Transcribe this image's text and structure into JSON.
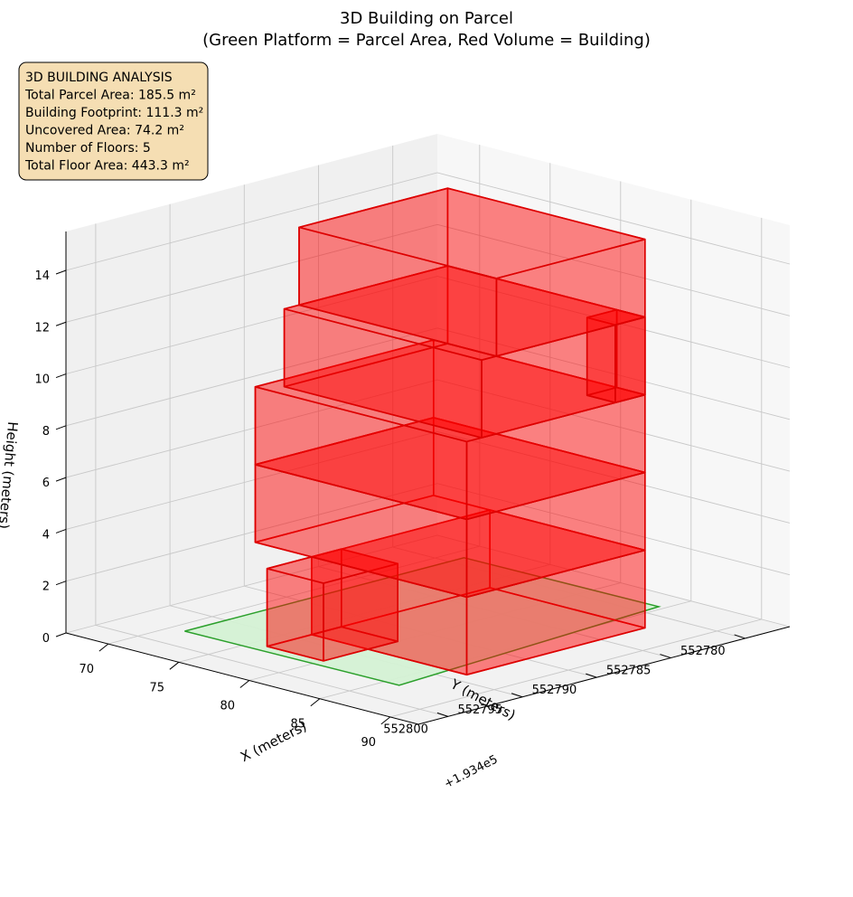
{
  "chart_data": {
    "type": "3d-volume",
    "title": "3D Building on Parcel",
    "subtitle": "(Green Platform = Parcel Area, Red Volume = Building)",
    "xlabel": "X (meters)",
    "ylabel": "Y (meters)",
    "zlabel": "Height (meters)",
    "x_offset_label": "+1.934e5",
    "x_ticks": [
      "70",
      "75",
      "80",
      "85",
      "90"
    ],
    "y_ticks": [
      "552780",
      "552785",
      "552790",
      "552795",
      "552800"
    ],
    "z_ticks": [
      "0",
      "2",
      "4",
      "6",
      "8",
      "10",
      "12",
      "14"
    ],
    "xlim": [
      193467,
      193492
    ],
    "ylim": [
      552777,
      552802
    ],
    "zlim": [
      0,
      15.5
    ],
    "grid": true,
    "info_box": {
      "lines": [
        "3D BUILDING ANALYSIS",
        "Total Parcel Area: 185.5 m²",
        "Building Footprint: 111.3 m²",
        "Uncovered Area: 74.2 m²",
        "Number of Floors: 5",
        "Total Floor Area: 443.3 m²"
      ],
      "background": "#f5deb3"
    },
    "parcel": {
      "color": "#2ca02c",
      "fill": "#d4f1d4",
      "z": 0,
      "corners": [
        [
          193471,
          552779
        ],
        [
          193484.6,
          552778.8
        ],
        [
          193486,
          552797.6
        ],
        [
          193471,
          552797.8
        ]
      ]
    },
    "building": {
      "color": "#ff0000",
      "edge": "#dd0000",
      "volumes": [
        {
          "x": [
            193476,
            193487
          ],
          "y": [
            552782,
            552794
          ],
          "z": [
            0,
            3
          ]
        },
        {
          "x": [
            193476,
            193480
          ],
          "y": [
            552792,
            552797
          ],
          "z": [
            0,
            3
          ]
        },
        {
          "x": [
            193472,
            193487
          ],
          "y": [
            552782,
            552794
          ],
          "z": [
            3,
            6
          ]
        },
        {
          "x": [
            193472,
            193487
          ],
          "y": [
            552782,
            552794
          ],
          "z": [
            6,
            9
          ]
        },
        {
          "x": [
            193473,
            193487
          ],
          "y": [
            552782,
            552793
          ],
          "z": [
            9,
            12
          ]
        },
        {
          "x": [
            193485,
            193487
          ],
          "y": [
            552782,
            552784
          ],
          "z": [
            9,
            12
          ]
        },
        {
          "x": [
            193473,
            193487
          ],
          "y": [
            552782,
            552792
          ],
          "z": [
            12,
            15
          ]
        }
      ]
    }
  }
}
